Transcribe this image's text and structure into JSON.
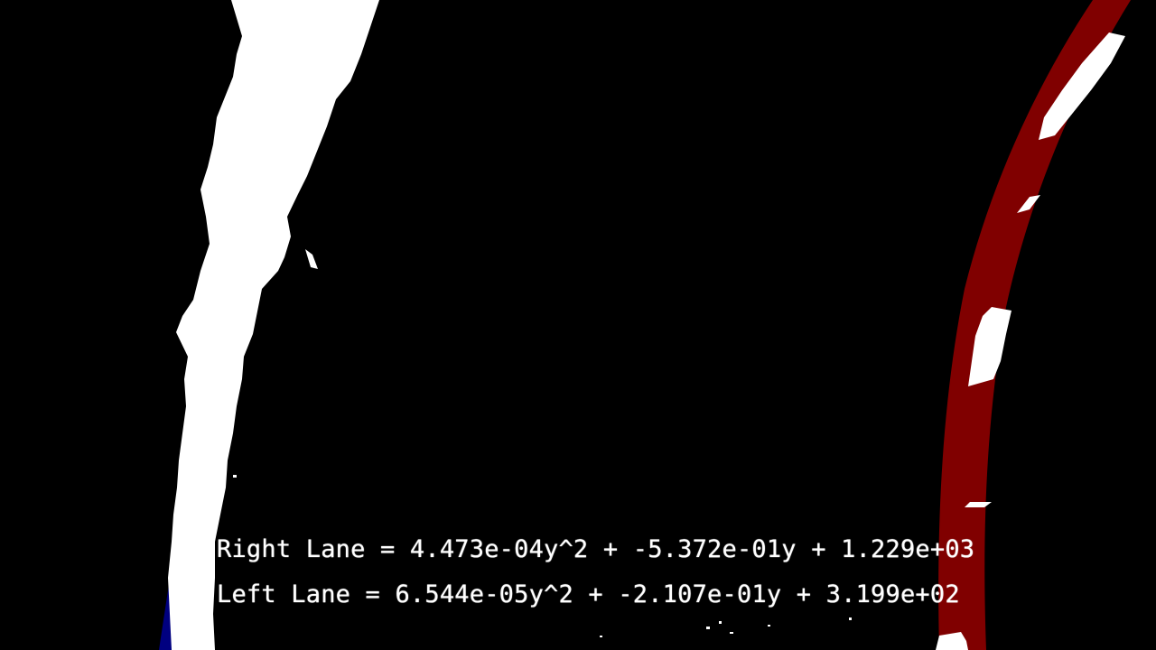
{
  "overlay": {
    "right_lane_equation": "Right Lane = 4.473e-04y^2 + -5.372e-01y + 1.229e+03",
    "left_lane_equation": "Left Lane = 6.544e-05y^2 + -2.107e-01y + 3.199e+02"
  },
  "colors": {
    "background": "#000000",
    "lane_pixels": "#ffffff",
    "right_lane_fit": "#800000",
    "left_lane_fit": "#000080",
    "text": "#ffffff"
  }
}
